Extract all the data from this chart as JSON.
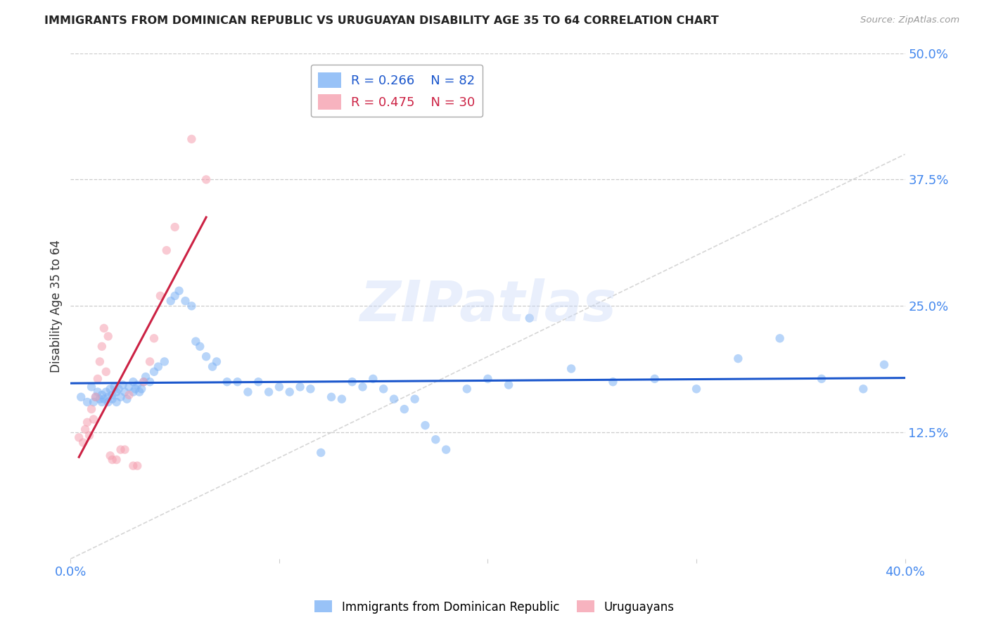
{
  "title": "IMMIGRANTS FROM DOMINICAN REPUBLIC VS URUGUAYAN DISABILITY AGE 35 TO 64 CORRELATION CHART",
  "source": "Source: ZipAtlas.com",
  "ylabel": "Disability Age 35 to 64",
  "xlim": [
    0.0,
    0.4
  ],
  "ylim": [
    0.0,
    0.5
  ],
  "ytick_positions": [
    0.125,
    0.25,
    0.375,
    0.5
  ],
  "ytick_labels": [
    "12.5%",
    "25.0%",
    "37.5%",
    "50.0%"
  ],
  "xtick_positions": [
    0.0,
    0.1,
    0.2,
    0.3,
    0.4
  ],
  "xtick_labels": [
    "0.0%",
    "",
    "",
    "",
    "40.0%"
  ],
  "grid_color": "#cccccc",
  "background_color": "#ffffff",
  "watermark_text": "ZIPatlas",
  "legend_r1": "R = 0.266",
  "legend_n1": "N = 82",
  "legend_r2": "R = 0.475",
  "legend_n2": "N = 30",
  "blue_color": "#7fb3f5",
  "pink_color": "#f5a0b0",
  "blue_line_color": "#1a56cc",
  "pink_line_color": "#cc2244",
  "title_color": "#222222",
  "ylabel_color": "#333333",
  "tick_label_color": "#4488ee",
  "diag_line_color": "#cccccc",
  "marker_size": 80,
  "marker_alpha": 0.55,
  "line_width": 2.2,
  "blue_scatter_x": [
    0.005,
    0.008,
    0.01,
    0.011,
    0.012,
    0.013,
    0.014,
    0.015,
    0.015,
    0.016,
    0.017,
    0.018,
    0.018,
    0.019,
    0.02,
    0.02,
    0.021,
    0.022,
    0.022,
    0.023,
    0.024,
    0.025,
    0.026,
    0.027,
    0.028,
    0.03,
    0.03,
    0.031,
    0.032,
    0.033,
    0.034,
    0.035,
    0.036,
    0.038,
    0.04,
    0.042,
    0.045,
    0.048,
    0.05,
    0.052,
    0.055,
    0.058,
    0.06,
    0.062,
    0.065,
    0.068,
    0.07,
    0.075,
    0.08,
    0.085,
    0.09,
    0.095,
    0.1,
    0.105,
    0.11,
    0.115,
    0.12,
    0.125,
    0.13,
    0.135,
    0.14,
    0.145,
    0.15,
    0.155,
    0.16,
    0.165,
    0.17,
    0.175,
    0.18,
    0.19,
    0.2,
    0.21,
    0.22,
    0.24,
    0.26,
    0.28,
    0.3,
    0.32,
    0.34,
    0.36,
    0.38,
    0.39
  ],
  "blue_scatter_y": [
    0.16,
    0.155,
    0.17,
    0.155,
    0.16,
    0.165,
    0.158,
    0.155,
    0.162,
    0.158,
    0.165,
    0.16,
    0.155,
    0.168,
    0.162,
    0.158,
    0.17,
    0.165,
    0.155,
    0.168,
    0.16,
    0.172,
    0.165,
    0.158,
    0.17,
    0.175,
    0.165,
    0.168,
    0.172,
    0.165,
    0.168,
    0.175,
    0.18,
    0.175,
    0.185,
    0.19,
    0.195,
    0.255,
    0.26,
    0.265,
    0.255,
    0.25,
    0.215,
    0.21,
    0.2,
    0.19,
    0.195,
    0.175,
    0.175,
    0.165,
    0.175,
    0.165,
    0.17,
    0.165,
    0.17,
    0.168,
    0.105,
    0.16,
    0.158,
    0.175,
    0.17,
    0.178,
    0.168,
    0.158,
    0.148,
    0.158,
    0.132,
    0.118,
    0.108,
    0.168,
    0.178,
    0.172,
    0.238,
    0.188,
    0.175,
    0.178,
    0.168,
    0.198,
    0.218,
    0.178,
    0.168,
    0.192
  ],
  "pink_scatter_x": [
    0.004,
    0.006,
    0.007,
    0.008,
    0.009,
    0.01,
    0.011,
    0.012,
    0.013,
    0.014,
    0.015,
    0.016,
    0.017,
    0.018,
    0.019,
    0.02,
    0.022,
    0.024,
    0.026,
    0.028,
    0.03,
    0.032,
    0.035,
    0.038,
    0.04,
    0.043,
    0.046,
    0.05,
    0.058,
    0.065
  ],
  "pink_scatter_y": [
    0.12,
    0.115,
    0.128,
    0.135,
    0.122,
    0.148,
    0.138,
    0.16,
    0.178,
    0.195,
    0.21,
    0.228,
    0.185,
    0.22,
    0.102,
    0.098,
    0.098,
    0.108,
    0.108,
    0.162,
    0.092,
    0.092,
    0.175,
    0.195,
    0.218,
    0.26,
    0.305,
    0.328,
    0.415,
    0.375
  ]
}
